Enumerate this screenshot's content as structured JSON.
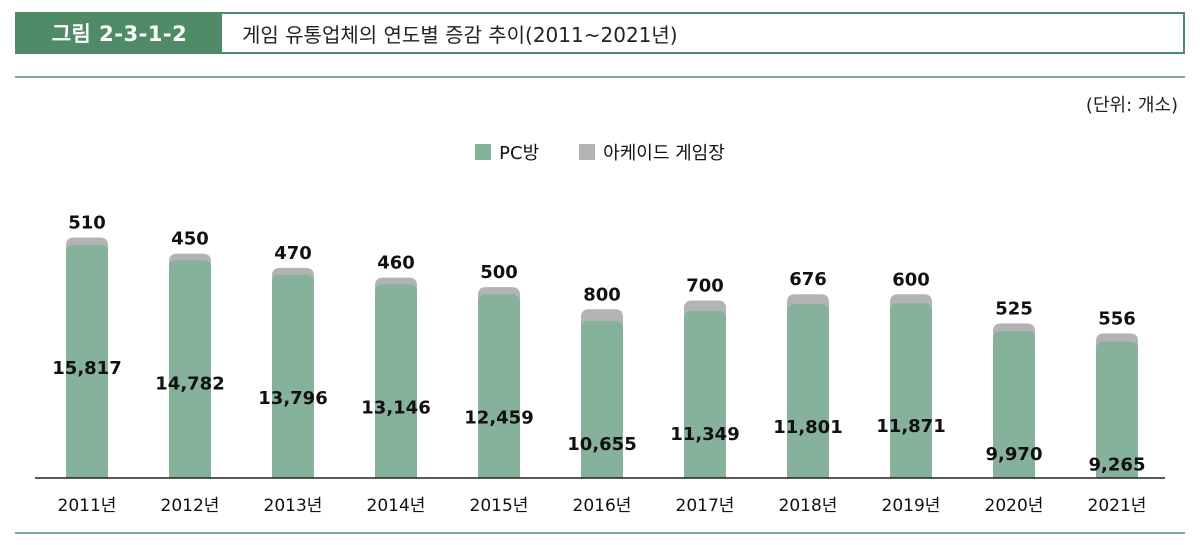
{
  "header": {
    "badge": "그림 2-3-1-2",
    "title": "게임 유통업체의 연도별 증감 추이(2011~2021년)"
  },
  "unit_label": "(단위: 개소)",
  "colors": {
    "accent": "#4e8b66",
    "pc_bang": "#86b19b",
    "arcade": "#b3b3b3"
  },
  "chart_data": {
    "type": "bar",
    "stacked": true,
    "categories": [
      "2011년",
      "2012년",
      "2013년",
      "2014년",
      "2015년",
      "2016년",
      "2017년",
      "2018년",
      "2019년",
      "2020년",
      "2021년"
    ],
    "series": [
      {
        "name": "PC방",
        "values": [
          15817,
          14782,
          13796,
          13146,
          12459,
          10655,
          11349,
          11801,
          11871,
          9970,
          9265
        ],
        "labels": [
          "15,817",
          "14,782",
          "13,796",
          "13,146",
          "12,459",
          "10,655",
          "11,349",
          "11,801",
          "11,871",
          "9,970",
          "9,265"
        ]
      },
      {
        "name": "아케이드 게임장",
        "values": [
          510,
          450,
          470,
          460,
          500,
          800,
          700,
          676,
          600,
          525,
          556
        ],
        "labels": [
          "510",
          "450",
          "470",
          "460",
          "500",
          "800",
          "700",
          "676",
          "600",
          "525",
          "556"
        ]
      }
    ],
    "legend": "top-center",
    "grid": false
  }
}
